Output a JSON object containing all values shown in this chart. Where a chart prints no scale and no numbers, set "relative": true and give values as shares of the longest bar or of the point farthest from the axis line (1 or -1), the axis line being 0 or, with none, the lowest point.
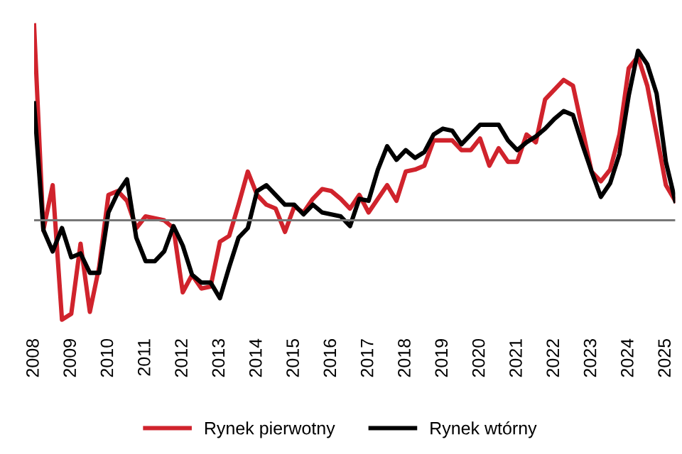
{
  "chart_data": {
    "type": "line",
    "relative": true,
    "x": [
      2008,
      2008.25,
      2008.5,
      2008.75,
      2009,
      2009.25,
      2009.5,
      2009.75,
      2010,
      2010.25,
      2010.5,
      2010.75,
      2011,
      2011.25,
      2011.5,
      2011.75,
      2012,
      2012.25,
      2012.5,
      2012.75,
      2013,
      2013.25,
      2013.5,
      2013.75,
      2014,
      2014.25,
      2014.5,
      2014.75,
      2015,
      2015.25,
      2015.5,
      2015.75,
      2016,
      2016.25,
      2016.5,
      2016.75,
      2017,
      2017.25,
      2017.5,
      2017.75,
      2018,
      2018.25,
      2018.5,
      2018.75,
      2019,
      2019.25,
      2019.5,
      2019.75,
      2020,
      2020.25,
      2020.5,
      2020.75,
      2021,
      2021.25,
      2021.5,
      2021.75,
      2022,
      2022.25,
      2022.5,
      2022.75,
      2023,
      2023.25,
      2023.5,
      2023.75,
      2024,
      2024.25,
      2024.5,
      2024.75,
      2025,
      2025.25
    ],
    "xlim": [
      2008,
      2025.25
    ],
    "xticks": [
      2008,
      2009,
      2010,
      2011,
      2012,
      2013,
      2014,
      2015,
      2016,
      2017,
      2018,
      2019,
      2020,
      2021,
      2022,
      2023,
      2024,
      2025
    ],
    "series": [
      {
        "name": "Rynek pierwotny",
        "color": "#d0232c",
        "values": [
          1.0,
          -0.05,
          0.18,
          -0.51,
          -0.48,
          -0.12,
          -0.47,
          -0.24,
          0.13,
          0.15,
          0.1,
          -0.04,
          0.02,
          0.01,
          0.0,
          -0.04,
          -0.37,
          -0.28,
          -0.35,
          -0.34,
          -0.11,
          -0.08,
          0.08,
          0.25,
          0.13,
          0.08,
          0.06,
          -0.06,
          0.07,
          0.04,
          0.11,
          0.16,
          0.15,
          0.11,
          0.06,
          0.13,
          0.04,
          0.11,
          0.18,
          0.1,
          0.25,
          0.26,
          0.28,
          0.41,
          0.41,
          0.41,
          0.36,
          0.36,
          0.42,
          0.28,
          0.37,
          0.3,
          0.3,
          0.44,
          0.4,
          0.62,
          0.67,
          0.72,
          0.69,
          0.47,
          0.25,
          0.2,
          0.26,
          0.44,
          0.78,
          0.84,
          0.69,
          0.44,
          0.18,
          0.1
        ]
      },
      {
        "name": "Rynek wtórny",
        "color": "#000000",
        "values": [
          0.6,
          -0.05,
          -0.16,
          -0.04,
          -0.19,
          -0.17,
          -0.27,
          -0.27,
          0.04,
          0.14,
          0.21,
          -0.09,
          -0.21,
          -0.21,
          -0.16,
          -0.03,
          -0.13,
          -0.28,
          -0.32,
          -0.32,
          -0.4,
          -0.24,
          -0.09,
          -0.04,
          0.15,
          0.18,
          0.13,
          0.08,
          0.08,
          0.03,
          0.08,
          0.04,
          0.03,
          0.02,
          -0.03,
          0.11,
          0.1,
          0.26,
          0.38,
          0.31,
          0.36,
          0.32,
          0.35,
          0.44,
          0.47,
          0.46,
          0.39,
          0.44,
          0.49,
          0.49,
          0.49,
          0.41,
          0.36,
          0.4,
          0.43,
          0.47,
          0.52,
          0.56,
          0.54,
          0.39,
          0.25,
          0.12,
          0.19,
          0.34,
          0.64,
          0.87,
          0.8,
          0.65,
          0.3,
          0.1
        ]
      }
    ],
    "legend": "bottom",
    "grid": false,
    "marker": "none",
    "line_style": "solid"
  }
}
